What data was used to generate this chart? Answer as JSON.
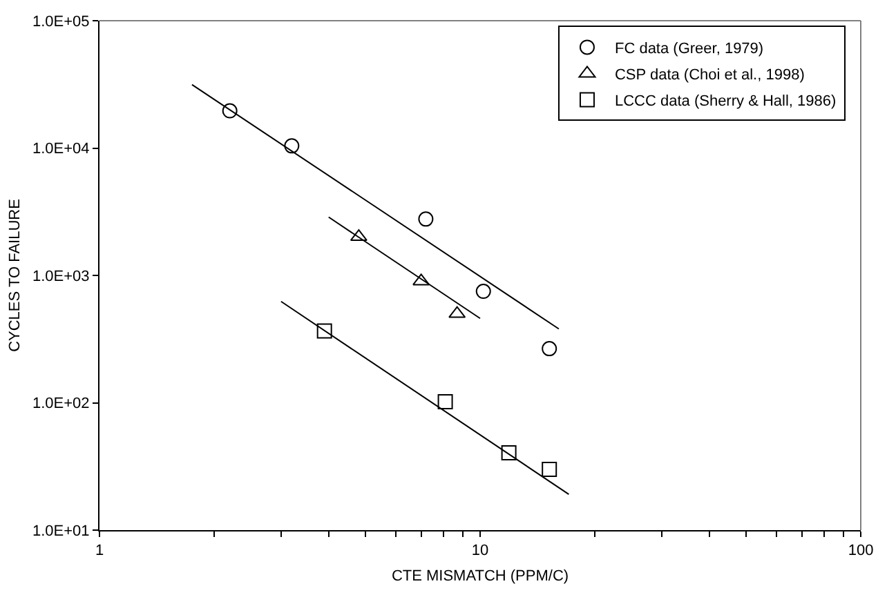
{
  "chart_data": {
    "type": "scatter",
    "xlabel": "CTE MISMATCH (PPM/C)",
    "ylabel": "CYCLES TO FAILURE",
    "log": "xy",
    "legend": "top right",
    "xlim": [
      1,
      100
    ],
    "ylim": [
      10,
      100000
    ],
    "xticks": [
      1,
      {
        "value": 2,
        "label": null
      },
      {
        "value": 3,
        "label": null
      },
      {
        "value": 4,
        "label": null
      },
      {
        "value": 5,
        "label": null
      },
      {
        "value": 6,
        "label": null
      },
      {
        "value": 7,
        "label": null
      },
      {
        "value": 8,
        "label": null
      },
      {
        "value": 9,
        "label": null
      },
      10,
      {
        "value": 20,
        "label": null
      },
      {
        "value": 30,
        "label": null
      },
      {
        "value": 40,
        "label": null
      },
      {
        "value": 50,
        "label": null
      },
      {
        "value": 60,
        "label": null
      },
      {
        "value": 70,
        "label": null
      },
      {
        "value": 80,
        "label": null
      },
      {
        "value": 90,
        "label": null
      },
      100
    ],
    "yticks": [
      {
        "value": 10,
        "label": "1.0E+01"
      },
      {
        "value": 100,
        "label": "1.0E+02"
      },
      {
        "value": 1000,
        "label": "1.0E+03"
      },
      {
        "value": 10000,
        "label": "1.0E+04"
      },
      {
        "value": 100000,
        "label": "1.0E+05"
      }
    ],
    "series": [
      {
        "name": "FC data (Greer, 1979)",
        "color": "#000000",
        "marker": "circle",
        "x": [
          2.2,
          3.2,
          7.2,
          10.2,
          15.2
        ],
        "values": [
          19600,
          10400,
          2770,
          750,
          266
        ]
      },
      {
        "name": "CSP data (Choi et al., 1998)",
        "color": "#000000",
        "marker": "triangle",
        "x": [
          4.8,
          7.0,
          8.7
        ],
        "values": [
          2010,
          900,
          500
        ]
      },
      {
        "name": "LCCC data (Sherry & Hall, 1986)",
        "color": "#000000",
        "marker": "square",
        "x": [
          3.9,
          8.1,
          11.9,
          15.2
        ],
        "values": [
          366,
          102,
          40.5,
          30
        ]
      },
      {
        "type": "line",
        "color": "#000000",
        "marker": "none",
        "line_style": "solid",
        "x": [
          1.75,
          16.1
        ],
        "values": [
          31500,
          380
        ]
      },
      {
        "type": "line",
        "color": "#000000",
        "marker": "none",
        "line_style": "solid",
        "x": [
          4.0,
          10
        ],
        "values": [
          2870,
          460
        ]
      },
      {
        "type": "line",
        "color": "#000000",
        "marker": "none",
        "line_style": "solid",
        "x": [
          3.0,
          17.1
        ],
        "values": [
          624,
          19.1
        ]
      }
    ]
  }
}
